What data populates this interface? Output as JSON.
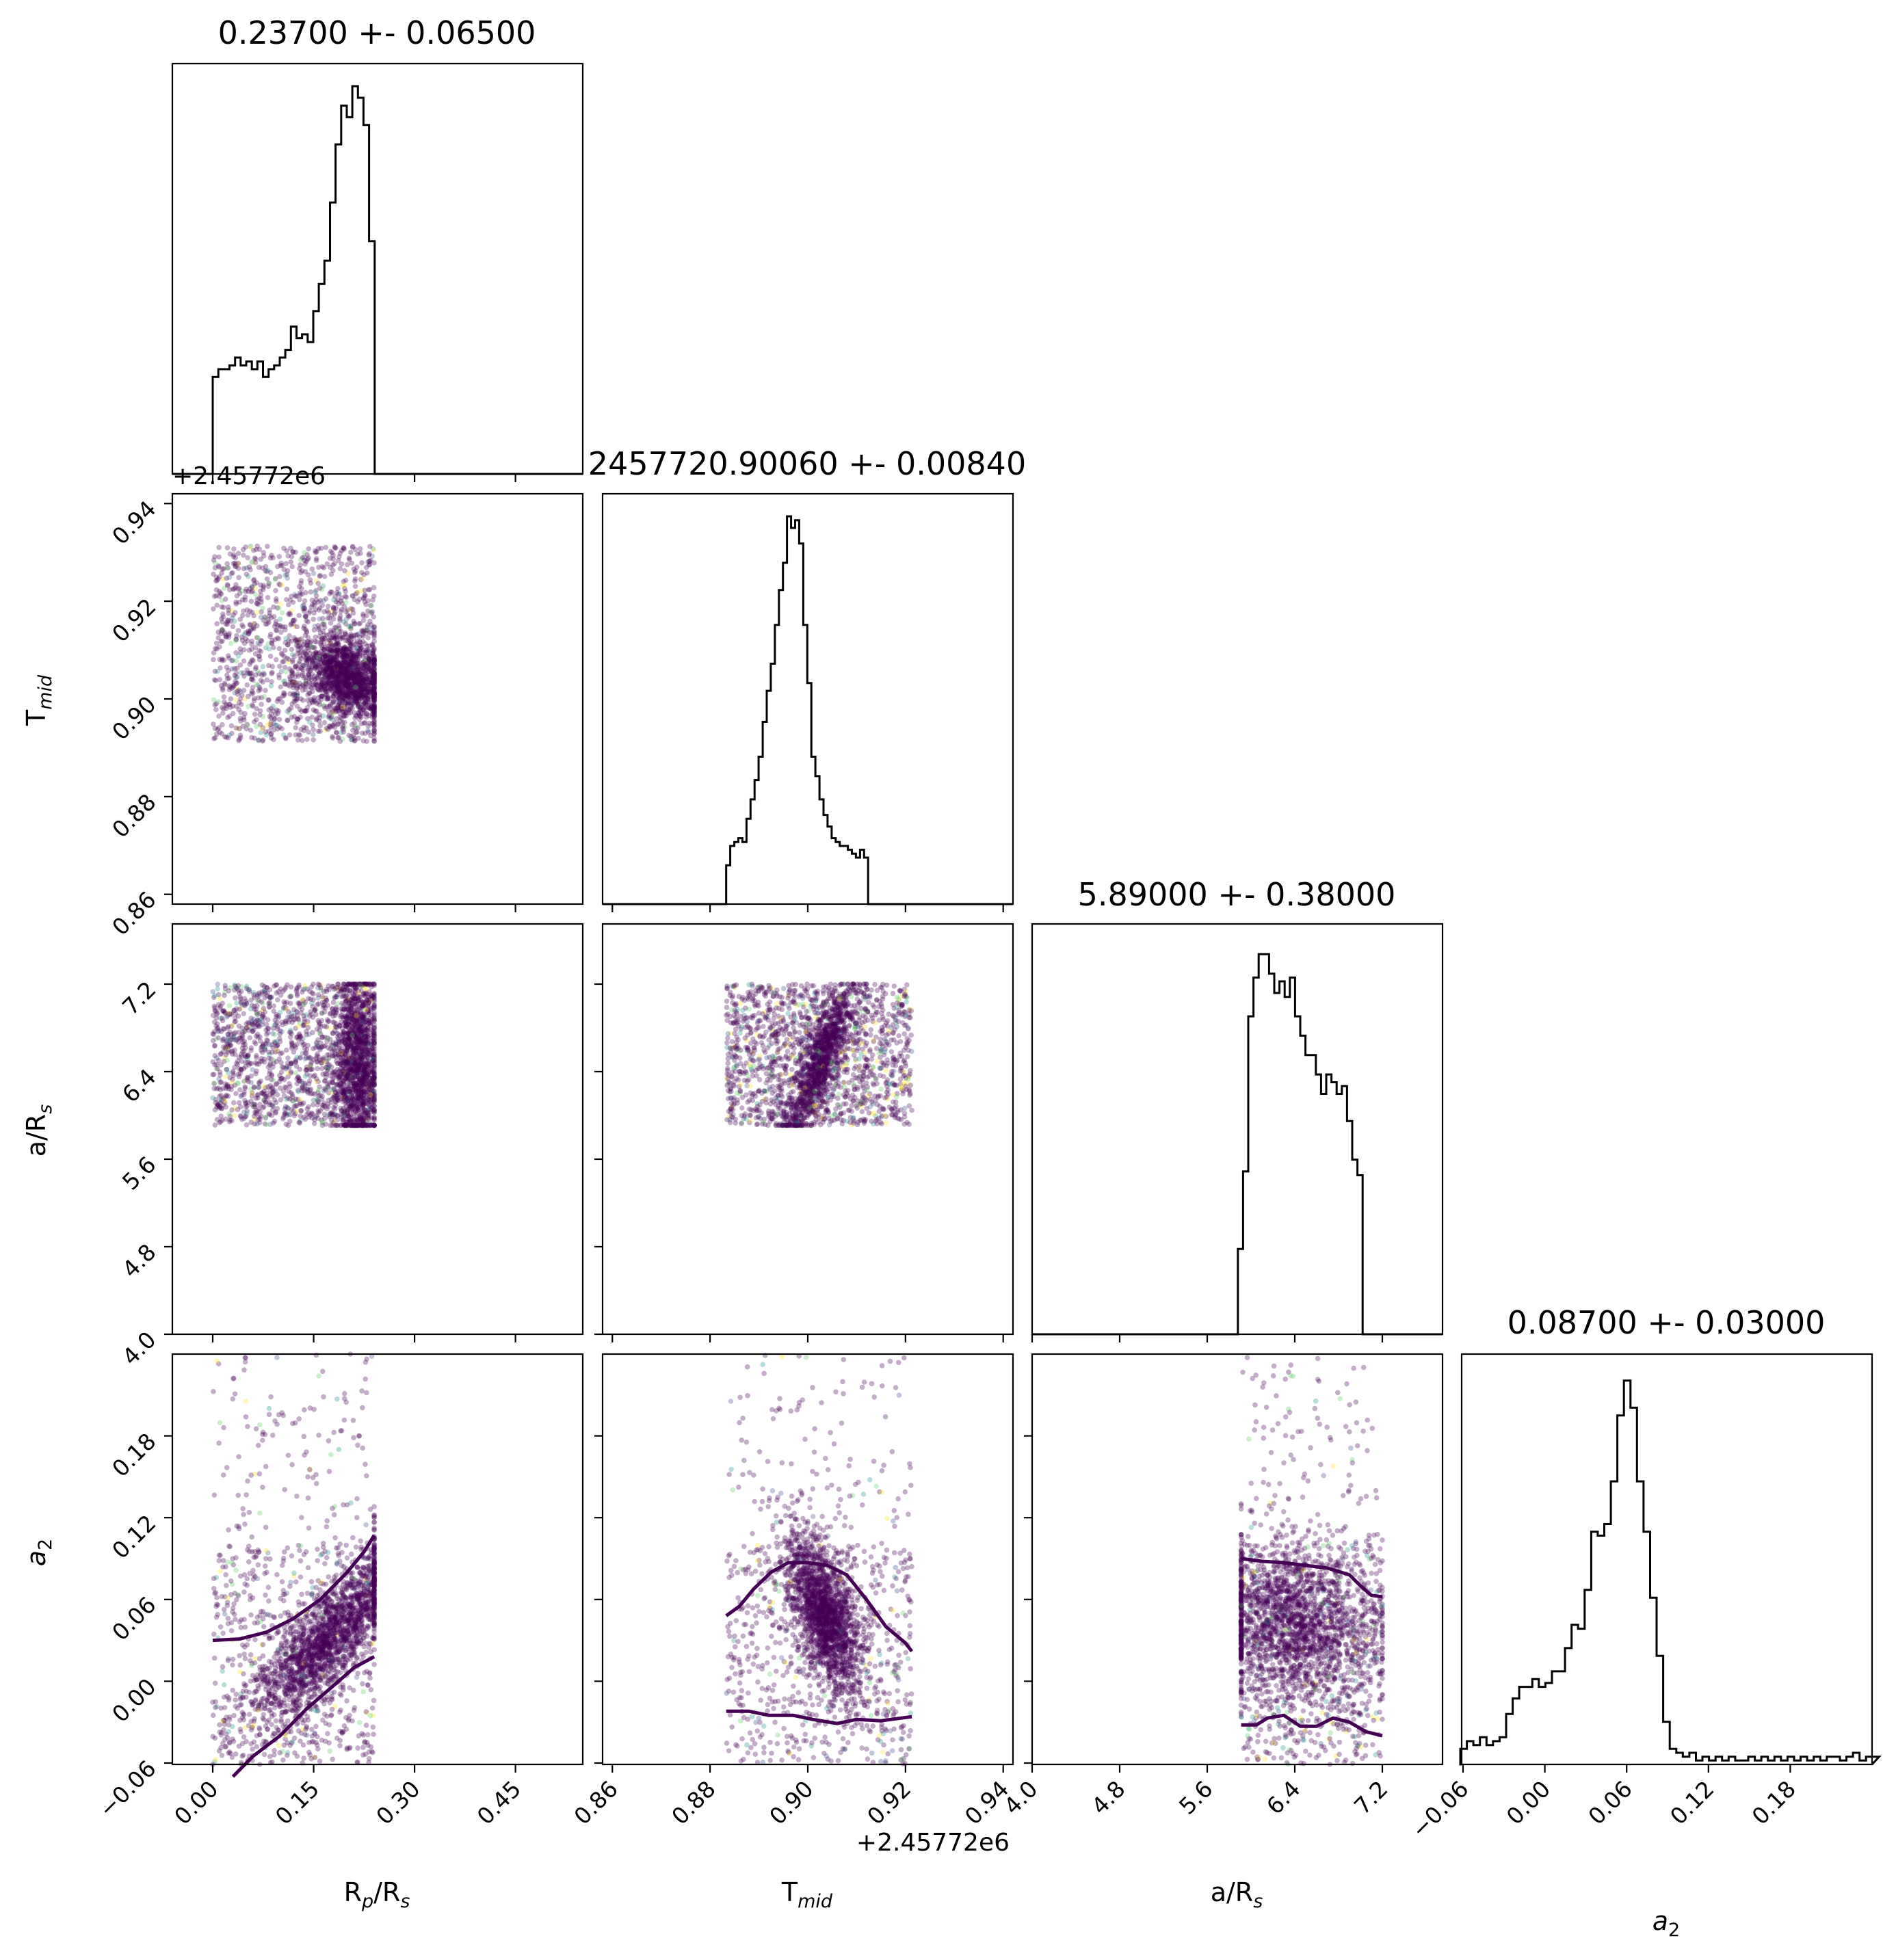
{
  "chart_data": {
    "type": "scatter",
    "kind": "corner-plot",
    "parameters": [
      {
        "key": "rp",
        "label": "R",
        "sub": "p",
        "label2": "/R",
        "sub2": "s"
      },
      {
        "key": "tmid",
        "label": "T",
        "sub": "mid",
        "label2": "",
        "sub2": ""
      },
      {
        "key": "ars",
        "label": "a/R",
        "sub": "s",
        "label2": "",
        "sub2": ""
      },
      {
        "key": "a2",
        "label": "a",
        "sub": "2",
        "label2": "",
        "sub2": "",
        "italic": true
      }
    ],
    "titles": [
      "0.23700 +- 0.06500",
      "2457720.90060 +- 0.00840",
      "5.89000 +- 0.38000",
      "0.08700 +- 0.03000"
    ],
    "offset_label": "+2.45772e6",
    "ranges": {
      "rp": [
        -0.06,
        0.55
      ],
      "tmid": [
        2457720.858,
        2457720.942
      ],
      "ars": [
        4.0,
        7.75
      ],
      "a2": [
        -0.061,
        0.24
      ]
    },
    "ticks": {
      "rp": {
        "values": [
          0.0,
          0.15,
          0.3,
          0.45
        ],
        "labels": [
          "0.00",
          "0.15",
          "0.30",
          "0.45"
        ]
      },
      "tmid": {
        "values": [
          2457720.86,
          2457720.88,
          2457720.9,
          2457720.92,
          2457720.94
        ],
        "labels": [
          "0.86",
          "0.88",
          "0.90",
          "0.92",
          "0.94"
        ]
      },
      "ars": {
        "values": [
          4.0,
          4.8,
          5.6,
          6.4,
          7.2
        ],
        "labels": [
          "4.0",
          "4.8",
          "5.6",
          "6.4",
          "7.2"
        ]
      },
      "a2": {
        "values": [
          -0.06,
          0.0,
          0.06,
          0.12,
          0.18
        ],
        "labels": [
          "−0.06",
          "0.00",
          "0.06",
          "0.12",
          "0.18"
        ]
      }
    },
    "histograms": {
      "rp": {
        "start": 0.0,
        "width": 0.0083,
        "heights": [
          0.25,
          0.27,
          0.27,
          0.28,
          0.3,
          0.28,
          0.29,
          0.27,
          0.29,
          0.25,
          0.27,
          0.28,
          0.3,
          0.32,
          0.38,
          0.35,
          0.36,
          0.34,
          0.42,
          0.49,
          0.55,
          0.7,
          0.85,
          0.95,
          0.92,
          1.0,
          0.97,
          0.9,
          0.6,
          0.0
        ]
      },
      "tmid": {
        "start": 2457720.8833,
        "width": 0.00083,
        "heights": [
          0.1,
          0.15,
          0.16,
          0.17,
          0.16,
          0.22,
          0.27,
          0.32,
          0.38,
          0.47,
          0.55,
          0.62,
          0.72,
          0.81,
          0.88,
          1.0,
          0.97,
          0.99,
          0.93,
          0.72,
          0.57,
          0.38,
          0.33,
          0.27,
          0.23,
          0.2,
          0.17,
          0.16,
          0.15,
          0.15,
          0.14,
          0.13,
          0.12,
          0.14,
          0.12,
          0.0
        ]
      },
      "ars": {
        "start": 5.88,
        "width": 0.0475,
        "heights": [
          0.22,
          0.42,
          0.82,
          0.92,
          0.98,
          0.98,
          0.93,
          0.88,
          0.91,
          0.87,
          0.92,
          0.82,
          0.77,
          0.72,
          0.72,
          0.67,
          0.62,
          0.67,
          0.65,
          0.62,
          0.64,
          0.55,
          0.45,
          0.41,
          0.0
        ]
      },
      "a2": {
        "start": -0.062,
        "width": 0.0048,
        "heights": [
          0.04,
          0.06,
          0.05,
          0.07,
          0.05,
          0.06,
          0.07,
          0.13,
          0.17,
          0.2,
          0.2,
          0.22,
          0.2,
          0.21,
          0.24,
          0.24,
          0.3,
          0.36,
          0.35,
          0.45,
          0.6,
          0.59,
          0.62,
          0.73,
          0.9,
          0.99,
          0.92,
          0.73,
          0.6,
          0.43,
          0.28,
          0.11,
          0.04,
          0.03,
          0.02,
          0.03,
          0.01,
          0.02,
          0.01,
          0.02,
          0.01,
          0.02,
          0.01,
          0.01,
          0.02,
          0.01,
          0.02,
          0.01,
          0.02,
          0.01,
          0.02,
          0.01,
          0.02,
          0.01,
          0.02,
          0.01,
          0.02,
          0.02,
          0.01,
          0.02,
          0.03,
          0.01,
          0.02,
          0.02
        ]
      }
    },
    "scatter": [
      {
        "x": "rp",
        "y": "tmid",
        "xr": [
          0.0,
          0.24
        ],
        "yr": [
          2457720.8913,
          2457720.9313
        ],
        "core": {
          "x": 0.2,
          "y": 2457720.9045,
          "sx": 0.032,
          "sy": 0.0045,
          "rho": -0.25
        },
        "core_frac": 0.55,
        "n": 2600
      },
      {
        "x": "rp",
        "y": "ars",
        "xr": [
          0.0,
          0.24
        ],
        "yr": [
          5.91,
          7.2
        ],
        "core": {
          "x": 0.215,
          "y": 6.5,
          "sx": 0.018,
          "sy": 0.4,
          "rho": 0.0
        },
        "core_frac": 0.45,
        "n": 2600
      },
      {
        "x": "tmid",
        "y": "ars",
        "xr": [
          2457720.8833,
          2457720.9213
        ],
        "yr": [
          5.91,
          7.2
        ],
        "core": {
          "x": 2457720.9025,
          "y": 6.5,
          "sx": 0.0035,
          "sy": 0.35,
          "rho": 0.85
        },
        "core_frac": 0.4,
        "n": 2600
      },
      {
        "x": "rp",
        "y": "a2",
        "xr": [
          0.0,
          0.24
        ],
        "yr": [
          -0.061,
          0.24
        ],
        "core": {
          "x": 0.17,
          "y": 0.03,
          "sx": 0.055,
          "sy": 0.03,
          "rho": 0.8
        },
        "core_frac": 0.7,
        "n": 2600,
        "band_y": [
          -0.06,
          0.1
        ]
      },
      {
        "x": "tmid",
        "y": "a2",
        "xr": [
          2457720.8833,
          2457720.9213
        ],
        "yr": [
          -0.061,
          0.24
        ],
        "core": {
          "x": 2457720.9035,
          "y": 0.05,
          "sx": 0.004,
          "sy": 0.03,
          "rho": -0.6
        },
        "core_frac": 0.7,
        "n": 2600,
        "band_y": [
          -0.06,
          0.1
        ]
      },
      {
        "x": "ars",
        "y": "a2",
        "xr": [
          5.91,
          7.2
        ],
        "yr": [
          -0.061,
          0.24
        ],
        "core": {
          "x": 6.4,
          "y": 0.04,
          "sx": 0.4,
          "sy": 0.03,
          "rho": -0.15
        },
        "core_frac": 0.7,
        "n": 2600,
        "band_y": [
          -0.06,
          0.1
        ]
      }
    ],
    "contours": [
      {
        "x": "rp",
        "y": "a2",
        "lines": [
          [
            [
              0.0,
              0.03
            ],
            [
              0.04,
              0.031
            ],
            [
              0.08,
              0.036
            ],
            [
              0.12,
              0.046
            ],
            [
              0.16,
              0.06
            ],
            [
              0.2,
              0.08
            ],
            [
              0.225,
              0.095
            ],
            [
              0.24,
              0.107
            ]
          ],
          [
            [
              0.03,
              -0.07
            ],
            [
              0.06,
              -0.055
            ],
            [
              0.1,
              -0.04
            ],
            [
              0.14,
              -0.02
            ],
            [
              0.18,
              -0.003
            ],
            [
              0.21,
              0.01
            ],
            [
              0.24,
              0.018
            ]
          ]
        ]
      },
      {
        "x": "tmid",
        "y": "a2",
        "lines": [
          [
            [
              2457720.8833,
              0.048
            ],
            [
              2457720.886,
              0.055
            ],
            [
              2457720.889,
              0.068
            ],
            [
              2457720.8925,
              0.08
            ],
            [
              2457720.896,
              0.087
            ],
            [
              2457720.9,
              0.087
            ],
            [
              2457720.904,
              0.085
            ],
            [
              2457720.908,
              0.078
            ],
            [
              2457720.912,
              0.06
            ],
            [
              2457720.916,
              0.04
            ],
            [
              2457720.92,
              0.028
            ],
            [
              2457720.9213,
              0.022
            ]
          ],
          [
            [
              2457720.8833,
              -0.022
            ],
            [
              2457720.888,
              -0.022
            ],
            [
              2457720.892,
              -0.025
            ],
            [
              2457720.897,
              -0.025
            ],
            [
              2457720.901,
              -0.028
            ],
            [
              2457720.906,
              -0.031
            ],
            [
              2457720.91,
              -0.028
            ],
            [
              2457720.915,
              -0.029
            ],
            [
              2457720.9213,
              -0.026
            ]
          ]
        ]
      },
      {
        "x": "ars",
        "y": "a2",
        "lines": [
          [
            [
              5.91,
              0.09
            ],
            [
              6.1,
              0.088
            ],
            [
              6.3,
              0.087
            ],
            [
              6.5,
              0.085
            ],
            [
              6.7,
              0.083
            ],
            [
              6.9,
              0.078
            ],
            [
              7.0,
              0.07
            ],
            [
              7.1,
              0.063
            ],
            [
              7.2,
              0.062
            ]
          ],
          [
            [
              5.91,
              -0.032
            ],
            [
              6.05,
              -0.032
            ],
            [
              6.15,
              -0.027
            ],
            [
              6.3,
              -0.025
            ],
            [
              6.45,
              -0.033
            ],
            [
              6.6,
              -0.033
            ],
            [
              6.75,
              -0.027
            ],
            [
              6.9,
              -0.03
            ],
            [
              7.05,
              -0.037
            ],
            [
              7.2,
              -0.04
            ]
          ]
        ]
      }
    ],
    "colors": {
      "scatter": "#440154",
      "hist": "#000000",
      "accent_points": [
        "#21918c",
        "#fde725",
        "#3b528b",
        "#5ec962"
      ]
    }
  }
}
